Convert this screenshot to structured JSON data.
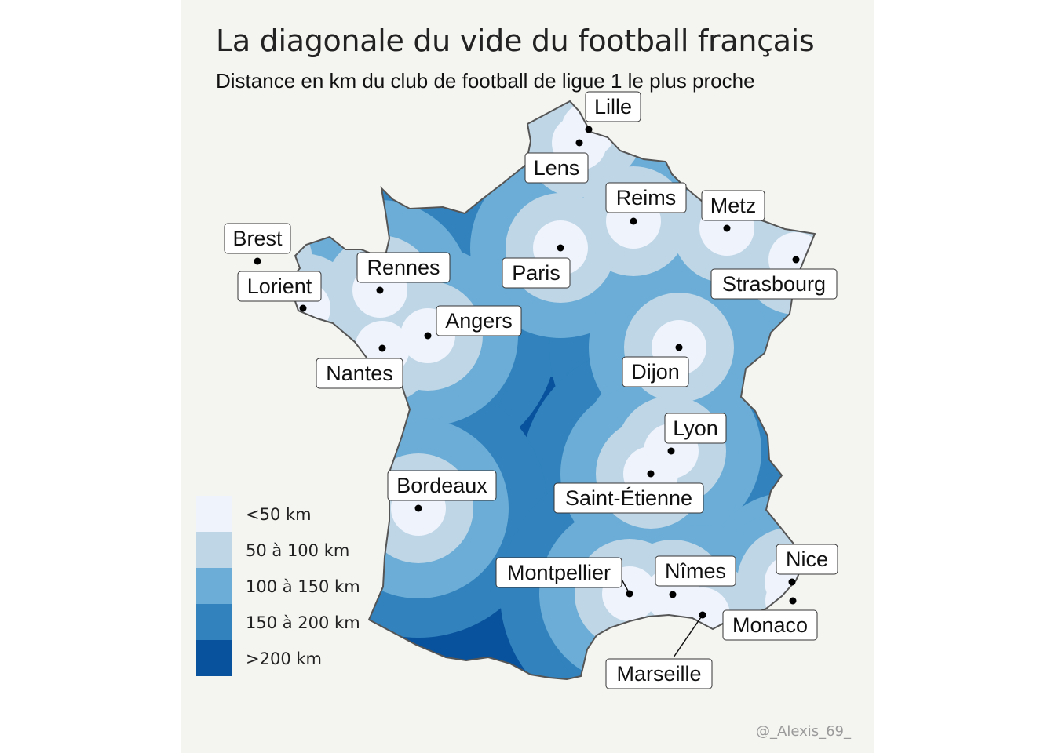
{
  "title": "La diagonale du vide du football français",
  "subtitle": "Distance en km du club de football de ligue 1 le plus proche",
  "credit": "@_Alexis_69_",
  "colors": {
    "c1": "#eef3fc",
    "c2": "#bfd6e6",
    "c3": "#6badd6",
    "c4": "#3182bd",
    "c5": "#08519c",
    "border": "#555555",
    "background": "#f4f4f1"
  },
  "legend": [
    {
      "label": "<50 km",
      "color": "#eef3fc"
    },
    {
      "label": "50 à 100 km",
      "color": "#bfd6e6"
    },
    {
      "label": "100 à 150 km",
      "color": "#6badd6"
    },
    {
      "label": "150 à 200 km",
      "color": "#3182bd"
    },
    {
      "label": ">200 km",
      "color": "#08519c"
    }
  ],
  "clubs": [
    {
      "name": "Lille"
    },
    {
      "name": "Lens"
    },
    {
      "name": "Reims"
    },
    {
      "name": "Metz"
    },
    {
      "name": "Strasbourg"
    },
    {
      "name": "Paris"
    },
    {
      "name": "Brest"
    },
    {
      "name": "Lorient"
    },
    {
      "name": "Rennes"
    },
    {
      "name": "Angers"
    },
    {
      "name": "Nantes"
    },
    {
      "name": "Dijon"
    },
    {
      "name": "Lyon"
    },
    {
      "name": "Saint-Étienne"
    },
    {
      "name": "Bordeaux"
    },
    {
      "name": "Montpellier"
    },
    {
      "name": "Nîmes"
    },
    {
      "name": "Nice"
    },
    {
      "name": "Monaco"
    },
    {
      "name": "Marseille"
    }
  ]
}
